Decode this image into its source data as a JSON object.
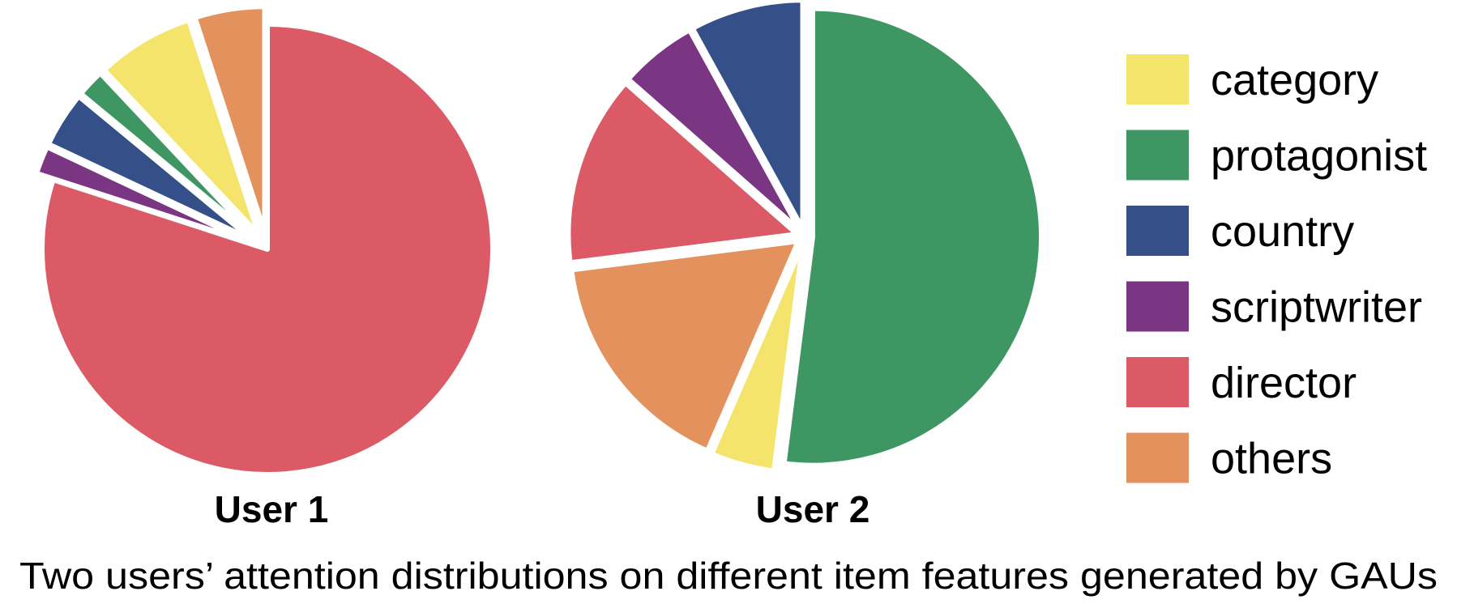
{
  "chart_data": {
    "type": "pie",
    "caption": "Two users’ attention distributions on different item features generated by GAUs",
    "legend_position": "right",
    "categories": [
      "category",
      "protagonist",
      "country",
      "scriptwriter",
      "director",
      "others"
    ],
    "colors": {
      "category": "#f4e46b",
      "protagonist": "#3e9763",
      "country": "#355089",
      "scriptwriter": "#7b3683",
      "director": "#db5a66",
      "others": "#e3925e"
    },
    "pies": [
      {
        "title": "User 1",
        "values": {
          "category": 7.0,
          "protagonist": 2.0,
          "country": 4.0,
          "scriptwriter": 2.0,
          "director": 80.0,
          "others": 5.0
        }
      },
      {
        "title": "User 2",
        "values": {
          "category": 4.5,
          "protagonist": 52.0,
          "country": 8.0,
          "scriptwriter": 5.5,
          "director": 13.5,
          "others": 16.5
        }
      }
    ]
  }
}
